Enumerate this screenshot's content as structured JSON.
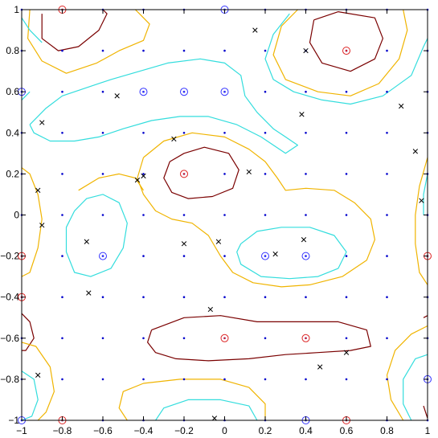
{
  "chart_data": {
    "type": "scatter",
    "title": "",
    "xlabel": "",
    "ylabel": "",
    "xlim": [
      -1,
      1
    ],
    "ylim": [
      -1,
      1
    ],
    "grid": false,
    "x_ticks": [
      -1,
      -0.8,
      -0.6,
      -0.4,
      -0.2,
      0,
      0.2,
      0.4,
      0.6,
      0.8,
      1
    ],
    "y_ticks": [
      -1,
      -0.8,
      -0.6,
      -0.4,
      -0.2,
      0,
      0.2,
      0.4,
      0.6,
      0.8,
      1
    ],
    "x_tick_labels": [
      "−1",
      "−0.8",
      "−0.6",
      "−0.4",
      "−0.2",
      "0",
      "0.2",
      "0.4",
      "0.6",
      "0.8",
      "1"
    ],
    "y_tick_labels": [
      "−1",
      "−0.8",
      "−0.6",
      "−0.4",
      "−0.2",
      "0",
      "0.2",
      "0.4",
      "0.6",
      "0.8",
      "1"
    ],
    "colors": {
      "grid_dot": "#0000cc",
      "blue_circle": "#3333ff",
      "red_circle": "#dd2222",
      "cross": "#000000",
      "contour_dark": "#7a0000",
      "contour_yellow": "#f0b400",
      "contour_cyan": "#33dddd"
    },
    "grid_points_step": 0.2,
    "cross_points": [
      [
        0.15,
        0.9
      ],
      [
        0.4,
        0.8
      ],
      [
        -0.53,
        0.58
      ],
      [
        -0.9,
        0.45
      ],
      [
        0.38,
        0.49
      ],
      [
        0.87,
        0.53
      ],
      [
        -0.25,
        0.37
      ],
      [
        0.94,
        0.31
      ],
      [
        0.12,
        0.21
      ],
      [
        -0.4,
        0.19
      ],
      [
        -0.43,
        0.17
      ],
      [
        -0.92,
        0.12
      ],
      [
        0.97,
        0.07
      ],
      [
        -0.9,
        -0.05
      ],
      [
        -0.68,
        -0.13
      ],
      [
        -0.2,
        -0.14
      ],
      [
        -0.03,
        -0.13
      ],
      [
        0.39,
        -0.12
      ],
      [
        0.25,
        -0.19
      ],
      [
        -0.67,
        -0.38
      ],
      [
        -0.07,
        -0.46
      ],
      [
        0.6,
        -0.67
      ],
      [
        0.47,
        -0.74
      ],
      [
        -0.92,
        -0.78
      ],
      [
        -0.05,
        -0.99
      ]
    ],
    "blue_circles": [
      [
        0,
        1
      ],
      [
        -1,
        0.6
      ],
      [
        -0.4,
        0.6
      ],
      [
        -0.2,
        0.6
      ],
      [
        0,
        0.6
      ],
      [
        -0.6,
        -0.2
      ],
      [
        0.2,
        -0.2
      ],
      [
        0.4,
        -0.2
      ],
      [
        1,
        -0.8
      ],
      [
        -1,
        -1
      ],
      [
        0.4,
        -1
      ]
    ],
    "red_circles": [
      [
        -0.8,
        1
      ],
      [
        0.6,
        0.8
      ],
      [
        -0.2,
        0.2
      ],
      [
        -1,
        -0.2
      ],
      [
        1,
        -0.2
      ],
      [
        -1,
        -0.4
      ],
      [
        0,
        -0.6
      ],
      [
        0.4,
        -0.6
      ],
      [
        -0.8,
        -1
      ],
      [
        0.6,
        -1
      ]
    ],
    "contours": [
      {
        "level": "dark",
        "points": [
          [
            -0.9,
            0.98
          ],
          [
            -0.9,
            0.86
          ],
          [
            -0.82,
            0.8
          ],
          [
            -0.72,
            0.82
          ],
          [
            -0.62,
            0.9
          ],
          [
            -0.58,
            0.98
          ],
          [
            -0.6,
            1.0
          ]
        ]
      },
      {
        "level": "dark",
        "points": [
          [
            0.44,
            0.95
          ],
          [
            0.56,
            0.99
          ],
          [
            0.74,
            0.96
          ],
          [
            0.78,
            0.86
          ],
          [
            0.74,
            0.76
          ],
          [
            0.62,
            0.7
          ],
          [
            0.48,
            0.74
          ],
          [
            0.42,
            0.84
          ],
          [
            0.44,
            0.95
          ]
        ]
      },
      {
        "level": "dark",
        "points": [
          [
            -0.2,
            0.3
          ],
          [
            -0.1,
            0.33
          ],
          [
            0.02,
            0.3
          ],
          [
            0.07,
            0.22
          ],
          [
            0.04,
            0.13
          ],
          [
            -0.06,
            0.09
          ],
          [
            -0.18,
            0.08
          ],
          [
            -0.26,
            0.11
          ],
          [
            -0.3,
            0.18
          ],
          [
            -0.27,
            0.26
          ],
          [
            -0.2,
            0.3
          ]
        ]
      },
      {
        "level": "dark",
        "points": [
          [
            -0.36,
            -0.56
          ],
          [
            -0.2,
            -0.5
          ],
          [
            -0.02,
            -0.49
          ],
          [
            0.16,
            -0.52
          ],
          [
            0.36,
            -0.52
          ],
          [
            0.56,
            -0.52
          ],
          [
            0.7,
            -0.56
          ],
          [
            0.72,
            -0.64
          ],
          [
            0.62,
            -0.66
          ],
          [
            0.46,
            -0.67
          ],
          [
            0.3,
            -0.68
          ],
          [
            0.12,
            -0.7
          ],
          [
            -0.08,
            -0.71
          ],
          [
            -0.24,
            -0.7
          ],
          [
            -0.34,
            -0.67
          ],
          [
            -0.38,
            -0.62
          ],
          [
            -0.36,
            -0.56
          ]
        ]
      },
      {
        "level": "dark",
        "points": [
          [
            -1.0,
            -0.48
          ],
          [
            -0.96,
            -0.52
          ],
          [
            -0.94,
            -0.6
          ],
          [
            -0.98,
            -0.66
          ],
          [
            -1.0,
            -0.66
          ]
        ]
      },
      {
        "level": "dark",
        "points": [
          [
            1.0,
            -0.49
          ],
          [
            0.98,
            -0.5
          ]
        ]
      },
      {
        "level": "dark",
        "points": [
          [
            1.0,
            -0.99
          ],
          [
            0.98,
            -0.93
          ]
        ]
      },
      {
        "level": "yellow",
        "points": [
          [
            -0.96,
            1.0
          ],
          [
            -0.97,
            0.86
          ],
          [
            -0.9,
            0.75
          ],
          [
            -0.78,
            0.69
          ],
          [
            -0.63,
            0.74
          ],
          [
            -0.52,
            0.8
          ],
          [
            -0.4,
            0.85
          ],
          [
            -0.37,
            0.93
          ],
          [
            -0.42,
            0.98
          ],
          [
            -0.44,
            1.0
          ]
        ]
      },
      {
        "level": "yellow",
        "points": [
          [
            0.36,
            1.0
          ],
          [
            0.28,
            0.92
          ],
          [
            0.24,
            0.78
          ],
          [
            0.3,
            0.66
          ],
          [
            0.46,
            0.6
          ],
          [
            0.62,
            0.58
          ],
          [
            0.76,
            0.64
          ],
          [
            0.86,
            0.76
          ],
          [
            0.9,
            0.9
          ],
          [
            0.88,
            1.0
          ]
        ]
      },
      {
        "level": "yellow",
        "points": [
          [
            -0.4,
            0.28
          ],
          [
            -0.3,
            0.36
          ],
          [
            -0.16,
            0.4
          ],
          [
            0,
            0.38
          ],
          [
            0.12,
            0.32
          ],
          [
            0.2,
            0.26
          ],
          [
            0.26,
            0.18
          ],
          [
            0.3,
            0.12
          ],
          [
            0.4,
            0.13
          ],
          [
            0.54,
            0.12
          ],
          [
            0.64,
            0.06
          ],
          [
            0.72,
            -0.02
          ],
          [
            0.74,
            -0.12
          ],
          [
            0.7,
            -0.22
          ],
          [
            0.58,
            -0.3
          ],
          [
            0.42,
            -0.34
          ],
          [
            0.28,
            -0.35
          ],
          [
            0.14,
            -0.33
          ],
          [
            0.04,
            -0.28
          ],
          [
            -0.02,
            -0.2
          ],
          [
            -0.08,
            -0.1
          ],
          [
            -0.16,
            -0.04
          ],
          [
            -0.26,
            -0.02
          ],
          [
            -0.34,
            0.02
          ],
          [
            -0.4,
            0.1
          ],
          [
            -0.43,
            0.18
          ],
          [
            -0.4,
            0.28
          ]
        ]
      },
      {
        "level": "yellow",
        "points": [
          [
            -1.0,
            0.23
          ],
          [
            -0.96,
            0.2
          ],
          [
            -0.92,
            0.1
          ],
          [
            -0.9,
            -0.02
          ],
          [
            -0.92,
            -0.16
          ],
          [
            -0.96,
            -0.28
          ],
          [
            -1.0,
            -0.3
          ]
        ]
      },
      {
        "level": "yellow",
        "points": [
          [
            1.0,
            0.28
          ],
          [
            0.96,
            0.14
          ],
          [
            0.94,
            0.0
          ],
          [
            0.94,
            -0.14
          ],
          [
            0.96,
            -0.28
          ],
          [
            1.0,
            -0.34
          ]
        ]
      },
      {
        "level": "yellow",
        "points": [
          [
            -0.72,
            0.12
          ],
          [
            -0.62,
            0.18
          ],
          [
            -0.52,
            0.2
          ],
          [
            -0.44,
            0.18
          ],
          [
            -0.4,
            0.12
          ]
        ]
      },
      {
        "level": "yellow",
        "points": [
          [
            -1.0,
            -0.62
          ],
          [
            -0.93,
            -0.64
          ],
          [
            -0.86,
            -0.74
          ],
          [
            -0.84,
            -0.86
          ],
          [
            -0.88,
            -0.96
          ],
          [
            -0.92,
            -1.0
          ]
        ]
      },
      {
        "level": "yellow",
        "points": [
          [
            -0.48,
            -1.0
          ],
          [
            -0.52,
            -0.94
          ],
          [
            -0.5,
            -0.86
          ],
          [
            -0.4,
            -0.82
          ],
          [
            -0.22,
            -0.8
          ],
          [
            -0.02,
            -0.8
          ],
          [
            0.12,
            -0.84
          ],
          [
            0.2,
            -0.92
          ],
          [
            0.2,
            -1.0
          ]
        ]
      },
      {
        "level": "yellow",
        "points": [
          [
            1.0,
            -0.54
          ],
          [
            0.92,
            -0.58
          ],
          [
            0.84,
            -0.66
          ],
          [
            0.8,
            -0.78
          ],
          [
            0.82,
            -0.9
          ],
          [
            0.88,
            -1.0
          ]
        ]
      },
      {
        "level": "cyan",
        "points": [
          [
            -1.0,
            0.96
          ],
          [
            -0.96,
            0.9
          ],
          [
            -0.9,
            0.84
          ]
        ]
      },
      {
        "level": "cyan",
        "points": [
          [
            -0.96,
            0.44
          ],
          [
            -0.88,
            0.52
          ],
          [
            -0.8,
            0.58
          ],
          [
            -0.68,
            0.62
          ],
          [
            -0.56,
            0.66
          ],
          [
            -0.42,
            0.7
          ],
          [
            -0.28,
            0.74
          ],
          [
            -0.12,
            0.76
          ],
          [
            0,
            0.74
          ],
          [
            0.08,
            0.68
          ],
          [
            0.1,
            0.58
          ],
          [
            0.16,
            0.5
          ],
          [
            0.24,
            0.42
          ],
          [
            0.3,
            0.38
          ],
          [
            0.36,
            0.34
          ],
          [
            0.3,
            0.3
          ],
          [
            0.18,
            0.38
          ],
          [
            0.06,
            0.44
          ],
          [
            -0.08,
            0.48
          ],
          [
            -0.22,
            0.48
          ],
          [
            -0.36,
            0.46
          ],
          [
            -0.5,
            0.42
          ],
          [
            -0.62,
            0.38
          ],
          [
            -0.74,
            0.36
          ],
          [
            -0.86,
            0.36
          ],
          [
            -0.94,
            0.4
          ],
          [
            -0.96,
            0.44
          ]
        ]
      },
      {
        "level": "cyan",
        "points": [
          [
            0.32,
            0.98
          ],
          [
            0.24,
            0.88
          ],
          [
            0.2,
            0.76
          ],
          [
            0.24,
            0.66
          ],
          [
            0.34,
            0.6
          ],
          [
            0.48,
            0.56
          ],
          [
            0.62,
            0.54
          ],
          [
            0.78,
            0.58
          ],
          [
            0.92,
            0.68
          ],
          [
            0.98,
            0.82
          ],
          [
            1.0,
            0.86
          ]
        ]
      },
      {
        "level": "cyan",
        "points": [
          [
            -1.0,
            0.56
          ],
          [
            -0.96,
            0.6
          ]
        ]
      },
      {
        "level": "cyan",
        "points": [
          [
            -0.74,
            0.02
          ],
          [
            -0.68,
            0.08
          ],
          [
            -0.6,
            0.1
          ],
          [
            -0.52,
            0.06
          ],
          [
            -0.48,
            -0.04
          ],
          [
            -0.5,
            -0.16
          ],
          [
            -0.56,
            -0.26
          ],
          [
            -0.66,
            -0.3
          ],
          [
            -0.74,
            -0.28
          ],
          [
            -0.78,
            -0.18
          ],
          [
            -0.78,
            -0.06
          ],
          [
            -0.74,
            0.02
          ]
        ]
      },
      {
        "level": "cyan",
        "points": [
          [
            0.08,
            -0.14
          ],
          [
            0.16,
            -0.08
          ],
          [
            0.28,
            -0.06
          ],
          [
            0.42,
            -0.06
          ],
          [
            0.54,
            -0.1
          ],
          [
            0.6,
            -0.18
          ],
          [
            0.56,
            -0.26
          ],
          [
            0.46,
            -0.3
          ],
          [
            0.32,
            -0.31
          ],
          [
            0.18,
            -0.3
          ],
          [
            0.08,
            -0.24
          ],
          [
            0.06,
            -0.18
          ],
          [
            0.08,
            -0.14
          ]
        ]
      },
      {
        "level": "cyan",
        "points": [
          [
            1.0,
            0.2
          ],
          [
            0.98,
            0.1
          ],
          [
            0.98,
            0.0
          ]
        ]
      },
      {
        "level": "cyan",
        "points": [
          [
            -1.0,
            -0.76
          ],
          [
            -0.94,
            -0.8
          ],
          [
            -0.92,
            -0.9
          ],
          [
            -0.95,
            -0.98
          ],
          [
            -1.0,
            -1.0
          ]
        ]
      },
      {
        "level": "cyan",
        "points": [
          [
            -0.34,
            -1.0
          ],
          [
            -0.3,
            -0.94
          ],
          [
            -0.18,
            -0.9
          ],
          [
            -0.02,
            -0.9
          ],
          [
            0.12,
            -0.93
          ],
          [
            0.16,
            -1.0
          ]
        ]
      },
      {
        "level": "cyan",
        "points": [
          [
            1.0,
            -0.68
          ],
          [
            0.94,
            -0.7
          ],
          [
            0.88,
            -0.8
          ],
          [
            0.88,
            -0.92
          ],
          [
            0.92,
            -1.0
          ]
        ]
      }
    ]
  }
}
